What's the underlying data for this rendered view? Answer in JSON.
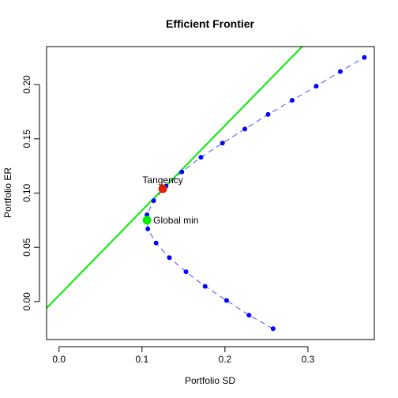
{
  "chart_data": {
    "type": "scatter",
    "title": "Efficient Frontier",
    "xlabel": "Portfolio SD",
    "ylabel": "Portfolio ER",
    "xlim": [
      -0.015,
      0.38
    ],
    "ylim": [
      -0.035,
      0.235
    ],
    "xticks": [
      0.0,
      0.1,
      0.2,
      0.3
    ],
    "xtick_labels": [
      "0.0",
      "0.1",
      "0.2",
      "0.3"
    ],
    "yticks": [
      0.0,
      0.05,
      0.1,
      0.15,
      0.2
    ],
    "ytick_labels": [
      "0.00",
      "0.05",
      "0.10",
      "0.15",
      "0.20"
    ],
    "grid": false,
    "series": [
      {
        "color": "#0000ff",
        "line_color": "#4d4dff",
        "line_style": "dashed",
        "points": [
          {
            "x": 0.258,
            "y": -0.025
          },
          {
            "x": 0.229,
            "y": -0.0125
          },
          {
            "x": 0.202,
            "y": 0.001
          },
          {
            "x": 0.176,
            "y": 0.014
          },
          {
            "x": 0.153,
            "y": 0.0275
          },
          {
            "x": 0.133,
            "y": 0.0405
          },
          {
            "x": 0.117,
            "y": 0.054
          },
          {
            "x": 0.107,
            "y": 0.067
          },
          {
            "x": 0.106,
            "y": 0.08
          },
          {
            "x": 0.114,
            "y": 0.093
          },
          {
            "x": 0.129,
            "y": 0.1065
          },
          {
            "x": 0.148,
            "y": 0.1195
          },
          {
            "x": 0.171,
            "y": 0.133
          },
          {
            "x": 0.197,
            "y": 0.146
          },
          {
            "x": 0.224,
            "y": 0.159
          },
          {
            "x": 0.252,
            "y": 0.1725
          },
          {
            "x": 0.281,
            "y": 0.1855
          },
          {
            "x": 0.31,
            "y": 0.1985
          },
          {
            "x": 0.339,
            "y": 0.212
          },
          {
            "x": 0.368,
            "y": 0.225
          }
        ]
      }
    ],
    "capital_market_line": {
      "color": "#00ee00",
      "from": {
        "x": -0.015,
        "y": -0.006
      },
      "to": {
        "x": 0.293,
        "y": 0.235
      }
    },
    "highlights": [
      {
        "label": "Global min",
        "x": 0.106,
        "y": 0.075,
        "color": "#00ee00",
        "label_side": "right"
      },
      {
        "label": "Tangency",
        "x": 0.125,
        "y": 0.104,
        "color": "#dd2200",
        "label_side": "above"
      }
    ]
  }
}
